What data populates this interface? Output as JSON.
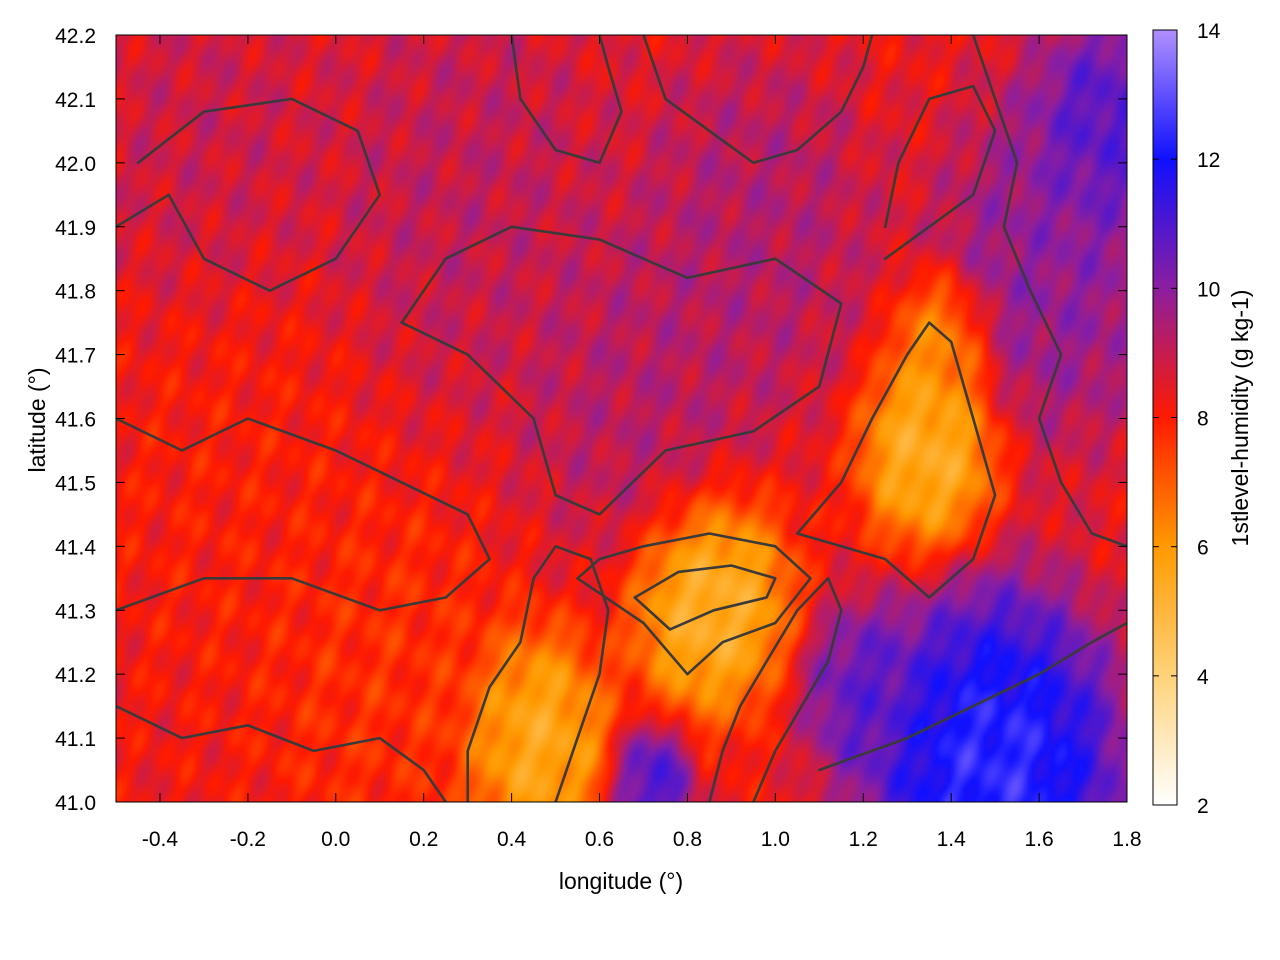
{
  "chart_data": {
    "type": "heatmap",
    "title": "",
    "xlabel": "longitude (°)",
    "ylabel": "latitude (°)",
    "colorbar_label": "1stlevel-humidity (g kg-1)",
    "xlim": [
      -0.5,
      1.8
    ],
    "ylim": [
      41.0,
      42.2
    ],
    "zlim": [
      2,
      14
    ],
    "x_ticks": [
      {
        "value": -0.4,
        "label": "-0.4"
      },
      {
        "value": -0.2,
        "label": "-0.2"
      },
      {
        "value": 0.0,
        "label": "0.0"
      },
      {
        "value": 0.2,
        "label": "0.2"
      },
      {
        "value": 0.4,
        "label": "0.4"
      },
      {
        "value": 0.6,
        "label": "0.6"
      },
      {
        "value": 0.8,
        "label": "0.8"
      },
      {
        "value": 1.0,
        "label": "1.0"
      },
      {
        "value": 1.2,
        "label": "1.2"
      },
      {
        "value": 1.4,
        "label": "1.4"
      },
      {
        "value": 1.6,
        "label": "1.6"
      },
      {
        "value": 1.8,
        "label": "1.8"
      }
    ],
    "y_ticks": [
      {
        "value": 41.0,
        "label": "41.0"
      },
      {
        "value": 41.1,
        "label": "41.1"
      },
      {
        "value": 41.2,
        "label": "41.2"
      },
      {
        "value": 41.3,
        "label": "41.3"
      },
      {
        "value": 41.4,
        "label": "41.4"
      },
      {
        "value": 41.5,
        "label": "41.5"
      },
      {
        "value": 41.6,
        "label": "41.6"
      },
      {
        "value": 41.7,
        "label": "41.7"
      },
      {
        "value": 41.8,
        "label": "41.8"
      },
      {
        "value": 41.9,
        "label": "41.9"
      },
      {
        "value": 42.0,
        "label": "42.0"
      },
      {
        "value": 42.1,
        "label": "42.1"
      },
      {
        "value": 42.2,
        "label": "42.2"
      }
    ],
    "colorbar_ticks": [
      {
        "value": 2,
        "label": "2"
      },
      {
        "value": 4,
        "label": "4"
      },
      {
        "value": 6,
        "label": "6"
      },
      {
        "value": 8,
        "label": "8"
      },
      {
        "value": 10,
        "label": "10"
      },
      {
        "value": 12,
        "label": "12"
      },
      {
        "value": 14,
        "label": "14"
      }
    ],
    "colormap": [
      {
        "value": 2,
        "color": "#ffffff"
      },
      {
        "value": 4,
        "color": "#ffd27a"
      },
      {
        "value": 6,
        "color": "#ff9a00"
      },
      {
        "value": 8,
        "color": "#ff1a00"
      },
      {
        "value": 10,
        "color": "#8c1ea0"
      },
      {
        "value": 12,
        "color": "#1010ff"
      },
      {
        "value": 14,
        "color": "#b090ff"
      }
    ],
    "humidity_features": [
      {
        "lon": -0.3,
        "lat": 42.05,
        "value": 9.0,
        "radius": 0.25
      },
      {
        "lon": 0.3,
        "lat": 41.95,
        "value": 9.2,
        "radius": 0.3
      },
      {
        "lon": 0.7,
        "lat": 41.65,
        "value": 9.4,
        "radius": 0.25
      },
      {
        "lon": 0.95,
        "lat": 41.9,
        "value": 9.5,
        "radius": 0.25
      },
      {
        "lon": 1.65,
        "lat": 41.85,
        "value": 10.2,
        "radius": 0.25
      },
      {
        "lon": 1.75,
        "lat": 42.05,
        "value": 11.5,
        "radius": 0.15
      },
      {
        "lon": -0.2,
        "lat": 41.45,
        "value": 8.0,
        "radius": 0.3
      },
      {
        "lon": 0.1,
        "lat": 41.2,
        "value": 7.6,
        "radius": 0.25
      },
      {
        "lon": 0.45,
        "lat": 41.1,
        "value": 5.0,
        "radius": 0.15
      },
      {
        "lon": 0.85,
        "lat": 41.32,
        "value": 4.6,
        "radius": 0.16
      },
      {
        "lon": 1.35,
        "lat": 41.55,
        "value": 4.8,
        "radius": 0.14
      },
      {
        "lon": 1.38,
        "lat": 41.72,
        "value": 5.8,
        "radius": 0.1
      },
      {
        "lon": 1.2,
        "lat": 41.17,
        "value": 11.0,
        "radius": 0.12
      },
      {
        "lon": 1.5,
        "lat": 41.05,
        "value": 13.2,
        "radius": 0.25
      },
      {
        "lon": 0.72,
        "lat": 41.03,
        "value": 11.5,
        "radius": 0.08
      }
    ],
    "humidity_background": 8.3,
    "contours": [
      [
        [
          -0.5,
          41.6
        ],
        [
          -0.35,
          41.55
        ],
        [
          -0.2,
          41.6
        ],
        [
          0.0,
          41.55
        ],
        [
          0.15,
          41.5
        ],
        [
          0.3,
          41.45
        ],
        [
          0.35,
          41.38
        ],
        [
          0.25,
          41.32
        ],
        [
          0.1,
          41.3
        ],
        [
          -0.1,
          41.35
        ],
        [
          -0.3,
          41.35
        ],
        [
          -0.5,
          41.3
        ]
      ],
      [
        [
          -0.5,
          41.9
        ],
        [
          -0.38,
          41.95
        ],
        [
          -0.3,
          41.85
        ],
        [
          -0.15,
          41.8
        ],
        [
          0.0,
          41.85
        ],
        [
          0.1,
          41.95
        ],
        [
          0.05,
          42.05
        ],
        [
          -0.1,
          42.1
        ],
        [
          -0.3,
          42.08
        ],
        [
          -0.45,
          42.0
        ]
      ],
      [
        [
          0.15,
          41.75
        ],
        [
          0.3,
          41.7
        ],
        [
          0.45,
          41.6
        ],
        [
          0.5,
          41.48
        ],
        [
          0.6,
          41.45
        ],
        [
          0.75,
          41.55
        ],
        [
          0.95,
          41.58
        ],
        [
          1.1,
          41.65
        ],
        [
          1.15,
          41.78
        ],
        [
          1.0,
          41.85
        ],
        [
          0.8,
          41.82
        ],
        [
          0.6,
          41.88
        ],
        [
          0.4,
          41.9
        ],
        [
          0.25,
          41.85
        ],
        [
          0.15,
          41.75
        ]
      ],
      [
        [
          0.55,
          41.35
        ],
        [
          0.7,
          41.28
        ],
        [
          0.8,
          41.2
        ],
        [
          0.88,
          41.25
        ],
        [
          1.0,
          41.28
        ],
        [
          1.08,
          41.35
        ],
        [
          1.0,
          41.4
        ],
        [
          0.85,
          41.42
        ],
        [
          0.7,
          41.4
        ],
        [
          0.6,
          41.38
        ],
        [
          0.55,
          41.35
        ]
      ],
      [
        [
          0.68,
          41.32
        ],
        [
          0.76,
          41.27
        ],
        [
          0.86,
          41.3
        ],
        [
          0.98,
          41.32
        ],
        [
          1.0,
          41.35
        ],
        [
          0.9,
          41.37
        ],
        [
          0.78,
          41.36
        ],
        [
          0.68,
          41.32
        ]
      ],
      [
        [
          1.05,
          41.42
        ],
        [
          1.15,
          41.5
        ],
        [
          1.22,
          41.6
        ],
        [
          1.3,
          41.7
        ],
        [
          1.35,
          41.75
        ],
        [
          1.4,
          41.72
        ],
        [
          1.45,
          41.6
        ],
        [
          1.5,
          41.48
        ],
        [
          1.45,
          41.38
        ],
        [
          1.35,
          41.32
        ],
        [
          1.25,
          41.38
        ],
        [
          1.15,
          41.4
        ],
        [
          1.05,
          41.42
        ]
      ],
      [
        [
          0.5,
          41.0
        ],
        [
          0.55,
          41.1
        ],
        [
          0.6,
          41.2
        ],
        [
          0.62,
          41.3
        ],
        [
          0.58,
          41.38
        ],
        [
          0.5,
          41.4
        ],
        [
          0.45,
          41.35
        ],
        [
          0.42,
          41.25
        ],
        [
          0.35,
          41.18
        ],
        [
          0.3,
          41.08
        ],
        [
          0.3,
          41.0
        ]
      ],
      [
        [
          0.85,
          41.0
        ],
        [
          0.88,
          41.08
        ],
        [
          0.92,
          41.15
        ],
        [
          0.98,
          41.22
        ],
        [
          1.05,
          41.3
        ],
        [
          1.12,
          41.35
        ],
        [
          1.15,
          41.3
        ],
        [
          1.12,
          41.22
        ],
        [
          1.06,
          41.15
        ],
        [
          1.0,
          41.08
        ],
        [
          0.95,
          41.0
        ]
      ],
      [
        [
          1.1,
          41.05
        ],
        [
          1.3,
          41.1
        ],
        [
          1.45,
          41.15
        ],
        [
          1.6,
          41.2
        ],
        [
          1.72,
          41.25
        ],
        [
          1.8,
          41.28
        ]
      ],
      [
        [
          0.7,
          42.2
        ],
        [
          0.75,
          42.1
        ],
        [
          0.85,
          42.05
        ],
        [
          0.95,
          42.0
        ],
        [
          1.05,
          42.02
        ],
        [
          1.15,
          42.08
        ],
        [
          1.2,
          42.15
        ],
        [
          1.22,
          42.2
        ]
      ],
      [
        [
          1.45,
          42.2
        ],
        [
          1.5,
          42.1
        ],
        [
          1.55,
          42.0
        ],
        [
          1.52,
          41.9
        ],
        [
          1.58,
          41.8
        ],
        [
          1.65,
          41.7
        ],
        [
          1.6,
          41.6
        ],
        [
          1.65,
          41.5
        ],
        [
          1.72,
          41.42
        ],
        [
          1.8,
          41.4
        ]
      ],
      [
        [
          -0.5,
          41.15
        ],
        [
          -0.35,
          41.1
        ],
        [
          -0.2,
          41.12
        ],
        [
          -0.05,
          41.08
        ],
        [
          0.1,
          41.1
        ],
        [
          0.2,
          41.05
        ],
        [
          0.25,
          41.0
        ]
      ],
      [
        [
          0.4,
          42.2
        ],
        [
          0.42,
          42.1
        ],
        [
          0.5,
          42.02
        ],
        [
          0.6,
          42.0
        ],
        [
          0.65,
          42.08
        ],
        [
          0.62,
          42.15
        ],
        [
          0.6,
          42.2
        ]
      ],
      [
        [
          1.25,
          41.85
        ],
        [
          1.35,
          41.9
        ],
        [
          1.45,
          41.95
        ],
        [
          1.5,
          42.05
        ],
        [
          1.45,
          42.12
        ],
        [
          1.35,
          42.1
        ],
        [
          1.28,
          42.0
        ],
        [
          1.25,
          41.9
        ]
      ]
    ]
  }
}
